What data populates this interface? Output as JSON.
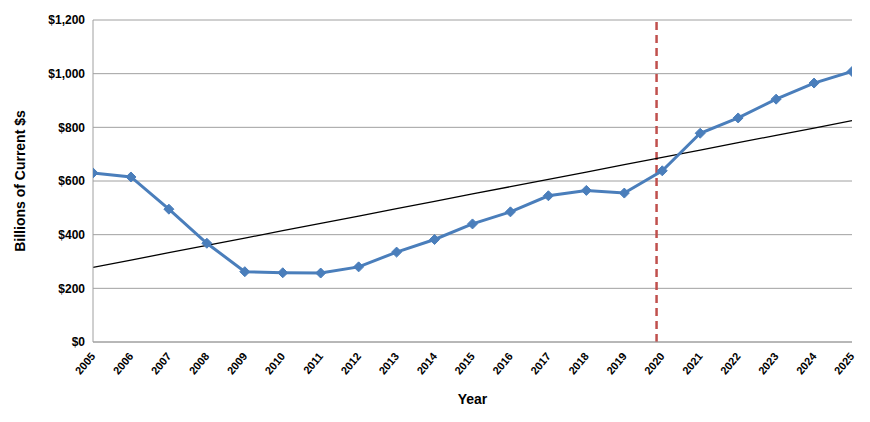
{
  "chart_data": {
    "type": "line",
    "x_label": "Year",
    "y_label": "Billions of Current $s",
    "x": [
      2005,
      2006,
      2007,
      2008,
      2009,
      2010,
      2011,
      2012,
      2013,
      2014,
      2015,
      2016,
      2017,
      2018,
      2019,
      2020,
      2021,
      2022,
      2023,
      2024,
      2025
    ],
    "series": [
      {
        "color": "#4a7ebb",
        "marker": "diamond",
        "line_style": "solid",
        "values": [
          630,
          615,
          495,
          368,
          262,
          258,
          257,
          280,
          335,
          382,
          440,
          485,
          545,
          565,
          555,
          638,
          778,
          835,
          905,
          965,
          1008
        ]
      },
      {
        "color": "#000000",
        "marker": "none",
        "line_style": "solid",
        "values": [
          278,
          305,
          333,
          360,
          387,
          415,
          442,
          469,
          497,
          524,
          552,
          579,
          606,
          633,
          661,
          688,
          715,
          743,
          770,
          797,
          825
        ]
      }
    ],
    "vlines": [
      {
        "x": 2019.85,
        "color": "#c0504d",
        "line_style": "dashed"
      }
    ],
    "xlim": [
      2005,
      2025
    ],
    "xticks": [
      2005,
      2006,
      2007,
      2008,
      2009,
      2010,
      2011,
      2012,
      2013,
      2014,
      2015,
      2016,
      2017,
      2018,
      2019,
      2020,
      2021,
      2022,
      2023,
      2024,
      2025
    ],
    "ylim": [
      0,
      1200
    ],
    "yticks": [
      {
        "value": 0,
        "label": "$0"
      },
      {
        "value": 200,
        "label": "$200"
      },
      {
        "value": 400,
        "label": "$400"
      },
      {
        "value": 600,
        "label": "$600"
      },
      {
        "value": 800,
        "label": "$800"
      },
      {
        "value": 1000,
        "label": "$1,000"
      },
      {
        "value": 1200,
        "label": "$1,200"
      }
    ],
    "grid": true
  }
}
